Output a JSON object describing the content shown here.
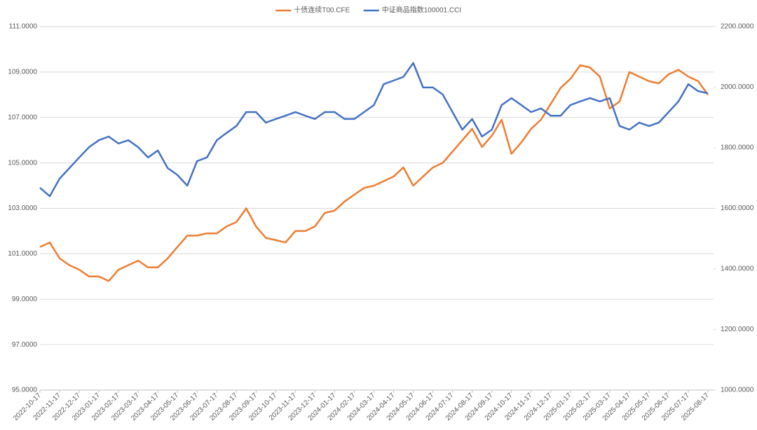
{
  "chart_data": {
    "type": "line",
    "categories": [
      "2022-10-17",
      null,
      "2022-11-17",
      null,
      "2022-12-17",
      null,
      "2023-01-17",
      null,
      "2023-02-17",
      null,
      "2023-03-17",
      null,
      "2023-04-17",
      null,
      "2023-05-17",
      null,
      "2023-06-17",
      null,
      "2023-07-17",
      null,
      "2023-08-17",
      null,
      "2023-09-17",
      null,
      "2023-10-17",
      null,
      "2023-11-17",
      null,
      "2023-12-17",
      null,
      "2024-01-17",
      null,
      "2024-02-17",
      null,
      "2024-03-17",
      null,
      "2024-04-17",
      null,
      "2024-05-17",
      null,
      "2024-06-17",
      null,
      "2024-07-17",
      null,
      "2024-08-17",
      null,
      "2024-09-17",
      null,
      "2024-10-17",
      null,
      "2024-11-17",
      null,
      "2024-12-17",
      null,
      "2025-01-17",
      null,
      "2025-02-17",
      null,
      "2025-03-17",
      null,
      "2025-04-17",
      null,
      "2025-05-17",
      null,
      "2025-06-17",
      null,
      "2025-07-17",
      null,
      "2025-08-17"
    ],
    "series": [
      {
        "name": "十债连续T00.CFE",
        "color": "#ed7d31",
        "axis": "y",
        "values": [
          101.3,
          101.5,
          100.8,
          100.5,
          100.3,
          100.0,
          100.0,
          99.8,
          100.3,
          100.5,
          100.7,
          100.4,
          100.4,
          100.8,
          101.3,
          101.8,
          101.8,
          101.9,
          101.9,
          102.2,
          102.4,
          103.0,
          102.2,
          101.7,
          101.6,
          101.5,
          102.0,
          102.0,
          102.2,
          102.8,
          102.9,
          103.3,
          103.6,
          103.9,
          104.0,
          104.2,
          104.4,
          104.8,
          104.0,
          104.4,
          104.8,
          105.0,
          105.5,
          106.0,
          106.5,
          105.7,
          106.2,
          106.9,
          105.4,
          105.9,
          106.5,
          106.9,
          107.6,
          108.3,
          108.7,
          109.3,
          109.2,
          108.8,
          107.4,
          107.7,
          109.0,
          108.8,
          108.6,
          108.5,
          108.9,
          109.1,
          108.8,
          108.6,
          108.0
        ]
      },
      {
        "name": "中证商品指数100001.CCI",
        "color": "#4472c4",
        "axis": "y2",
        "values": [
          1668,
          1640,
          1698,
          1733,
          1768,
          1802,
          1825,
          1837,
          1814,
          1825,
          1802,
          1768,
          1791,
          1733,
          1710,
          1675,
          1756,
          1768,
          1825,
          1849,
          1872,
          1918,
          1918,
          1883,
          1895,
          1906,
          1918,
          1906,
          1895,
          1918,
          1918,
          1895,
          1895,
          1918,
          1941,
          2010,
          2022,
          2034,
          2080,
          1999,
          1999,
          1976,
          1918,
          1860,
          1895,
          1837,
          1860,
          1941,
          1964,
          1941,
          1918,
          1930,
          1906,
          1906,
          1941,
          1953,
          1964,
          1953,
          1964,
          1872,
          1860,
          1883,
          1872,
          1883,
          1918,
          1953,
          2010,
          1987,
          1980
        ]
      }
    ],
    "ylim": [
      95,
      111
    ],
    "yticks": [
      {
        "value": 95,
        "label": "95.0000"
      },
      {
        "value": 97,
        "label": "97.0000"
      },
      {
        "value": 99,
        "label": "99.0000"
      },
      {
        "value": 101,
        "label": "101.0000"
      },
      {
        "value": 103,
        "label": "103.0000"
      },
      {
        "value": 105,
        "label": "105.0000"
      },
      {
        "value": 107,
        "label": "107.0000"
      },
      {
        "value": 109,
        "label": "109.0000"
      },
      {
        "value": 111,
        "label": "111.0000"
      }
    ],
    "y2lim": [
      1000,
      2200
    ],
    "y2ticks": [
      {
        "value": 1000,
        "label": "1000.0000"
      },
      {
        "value": 1200,
        "label": "1200.0000"
      },
      {
        "value": 1400,
        "label": "1400.0000"
      },
      {
        "value": 1600,
        "label": "1600.0000"
      },
      {
        "value": 1800,
        "label": "1800.0000"
      },
      {
        "value": 2000,
        "label": "2000.0000"
      },
      {
        "value": 2200,
        "label": "2200.0000"
      }
    ],
    "grid": true,
    "legend": "top"
  }
}
